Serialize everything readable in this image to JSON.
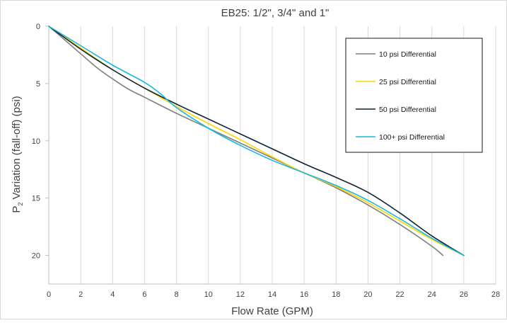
{
  "chart_data": {
    "type": "line",
    "title": "EB25: 1/2\", 3/4\" and 1\"",
    "xlabel": "Flow Rate (GPM)",
    "ylabel_main": "P",
    "ylabel_sub": "2",
    "ylabel_rest": " Variation (fall-off) (psi)",
    "xlim": [
      0,
      28
    ],
    "ylim": [
      0,
      22.5
    ],
    "y_inverted": true,
    "grid": "vertical",
    "legend_position": "top-right",
    "x_ticks": [
      "0",
      "2",
      "4",
      "6",
      "8",
      "10",
      "12",
      "14",
      "16",
      "18",
      "20",
      "22",
      "24",
      "26",
      "28"
    ],
    "y_ticks": [
      "0",
      "5",
      "10",
      "15",
      "20"
    ],
    "series": [
      {
        "name": "10 psi Differential",
        "color": "#7f7f7f",
        "x": [
          0,
          1,
          2,
          3,
          4,
          5,
          6,
          8,
          10,
          12,
          14,
          16,
          18,
          20,
          22,
          24,
          24.7
        ],
        "y": [
          0,
          1.2,
          2.4,
          3.6,
          4.6,
          5.5,
          6.2,
          7.6,
          8.9,
          10.2,
          11.5,
          12.8,
          14.1,
          15.6,
          17.3,
          19.2,
          20.0
        ]
      },
      {
        "name": "25 psi Differential",
        "color": "#ffd400",
        "x": [
          0,
          2,
          4,
          6,
          8,
          10,
          12,
          14,
          16,
          18,
          20,
          22,
          24,
          26
        ],
        "y": [
          0,
          1.9,
          3.8,
          5.4,
          7.0,
          8.5,
          9.9,
          11.4,
          12.8,
          14.0,
          15.4,
          17.0,
          18.6,
          20.0
        ]
      },
      {
        "name": "50 psi Differential",
        "color": "#0d2236",
        "x": [
          0,
          2,
          4,
          6,
          8,
          10,
          12,
          14,
          16,
          18,
          20,
          22,
          24,
          26
        ],
        "y": [
          0,
          2.0,
          3.8,
          5.4,
          6.8,
          8.1,
          9.4,
          10.7,
          12.0,
          13.2,
          14.5,
          16.3,
          18.3,
          20.0
        ]
      },
      {
        "name": "100+ psi Differential",
        "color": "#1ab8e0",
        "x": [
          0,
          2,
          4,
          6,
          7,
          8,
          10,
          12,
          14,
          16,
          18,
          20,
          22,
          24,
          26
        ],
        "y": [
          0,
          1.7,
          3.4,
          4.9,
          5.9,
          7.1,
          8.9,
          10.4,
          11.7,
          12.8,
          13.9,
          15.2,
          16.8,
          18.5,
          20.0
        ]
      }
    ]
  }
}
